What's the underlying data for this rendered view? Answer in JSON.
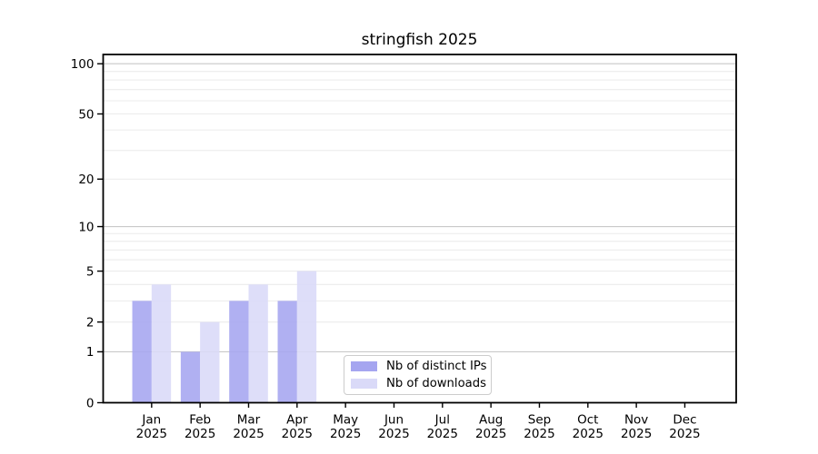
{
  "figure": {
    "title": "stringfish 2025"
  },
  "chart_data": {
    "type": "bar",
    "title": "stringfish 2025",
    "categories": [
      "Jan",
      "Feb",
      "Mar",
      "Apr",
      "May",
      "Jun",
      "Jul",
      "Aug",
      "Sep",
      "Oct",
      "Nov",
      "Dec"
    ],
    "year_label": "2025",
    "series": [
      {
        "name": "Nb of distinct IPs",
        "color": "#a5a5f0",
        "values": [
          3,
          1,
          3,
          3,
          0,
          0,
          0,
          0,
          0,
          0,
          0,
          0
        ]
      },
      {
        "name": "Nb of downloads",
        "color": "#dadaf8",
        "values": [
          4,
          2,
          4,
          5,
          0,
          0,
          0,
          0,
          0,
          0,
          0,
          0
        ]
      }
    ],
    "yscale": "log1p",
    "ylim": [
      0,
      113.6
    ],
    "ytick_labels": [
      0,
      1,
      2,
      5,
      10,
      20,
      50,
      100
    ],
    "grid_major": [
      1,
      10,
      100
    ],
    "grid_minor": [
      2,
      3,
      4,
      5,
      6,
      7,
      8,
      9,
      20,
      30,
      40,
      50,
      60,
      70,
      80,
      90
    ],
    "grid_on": true,
    "legend_position": "lower center-right inside plot",
    "colors": {
      "grid_major": "#c9c9c9",
      "grid_minor": "#ececec",
      "axis": "#000000",
      "background": "#ffffff"
    }
  }
}
